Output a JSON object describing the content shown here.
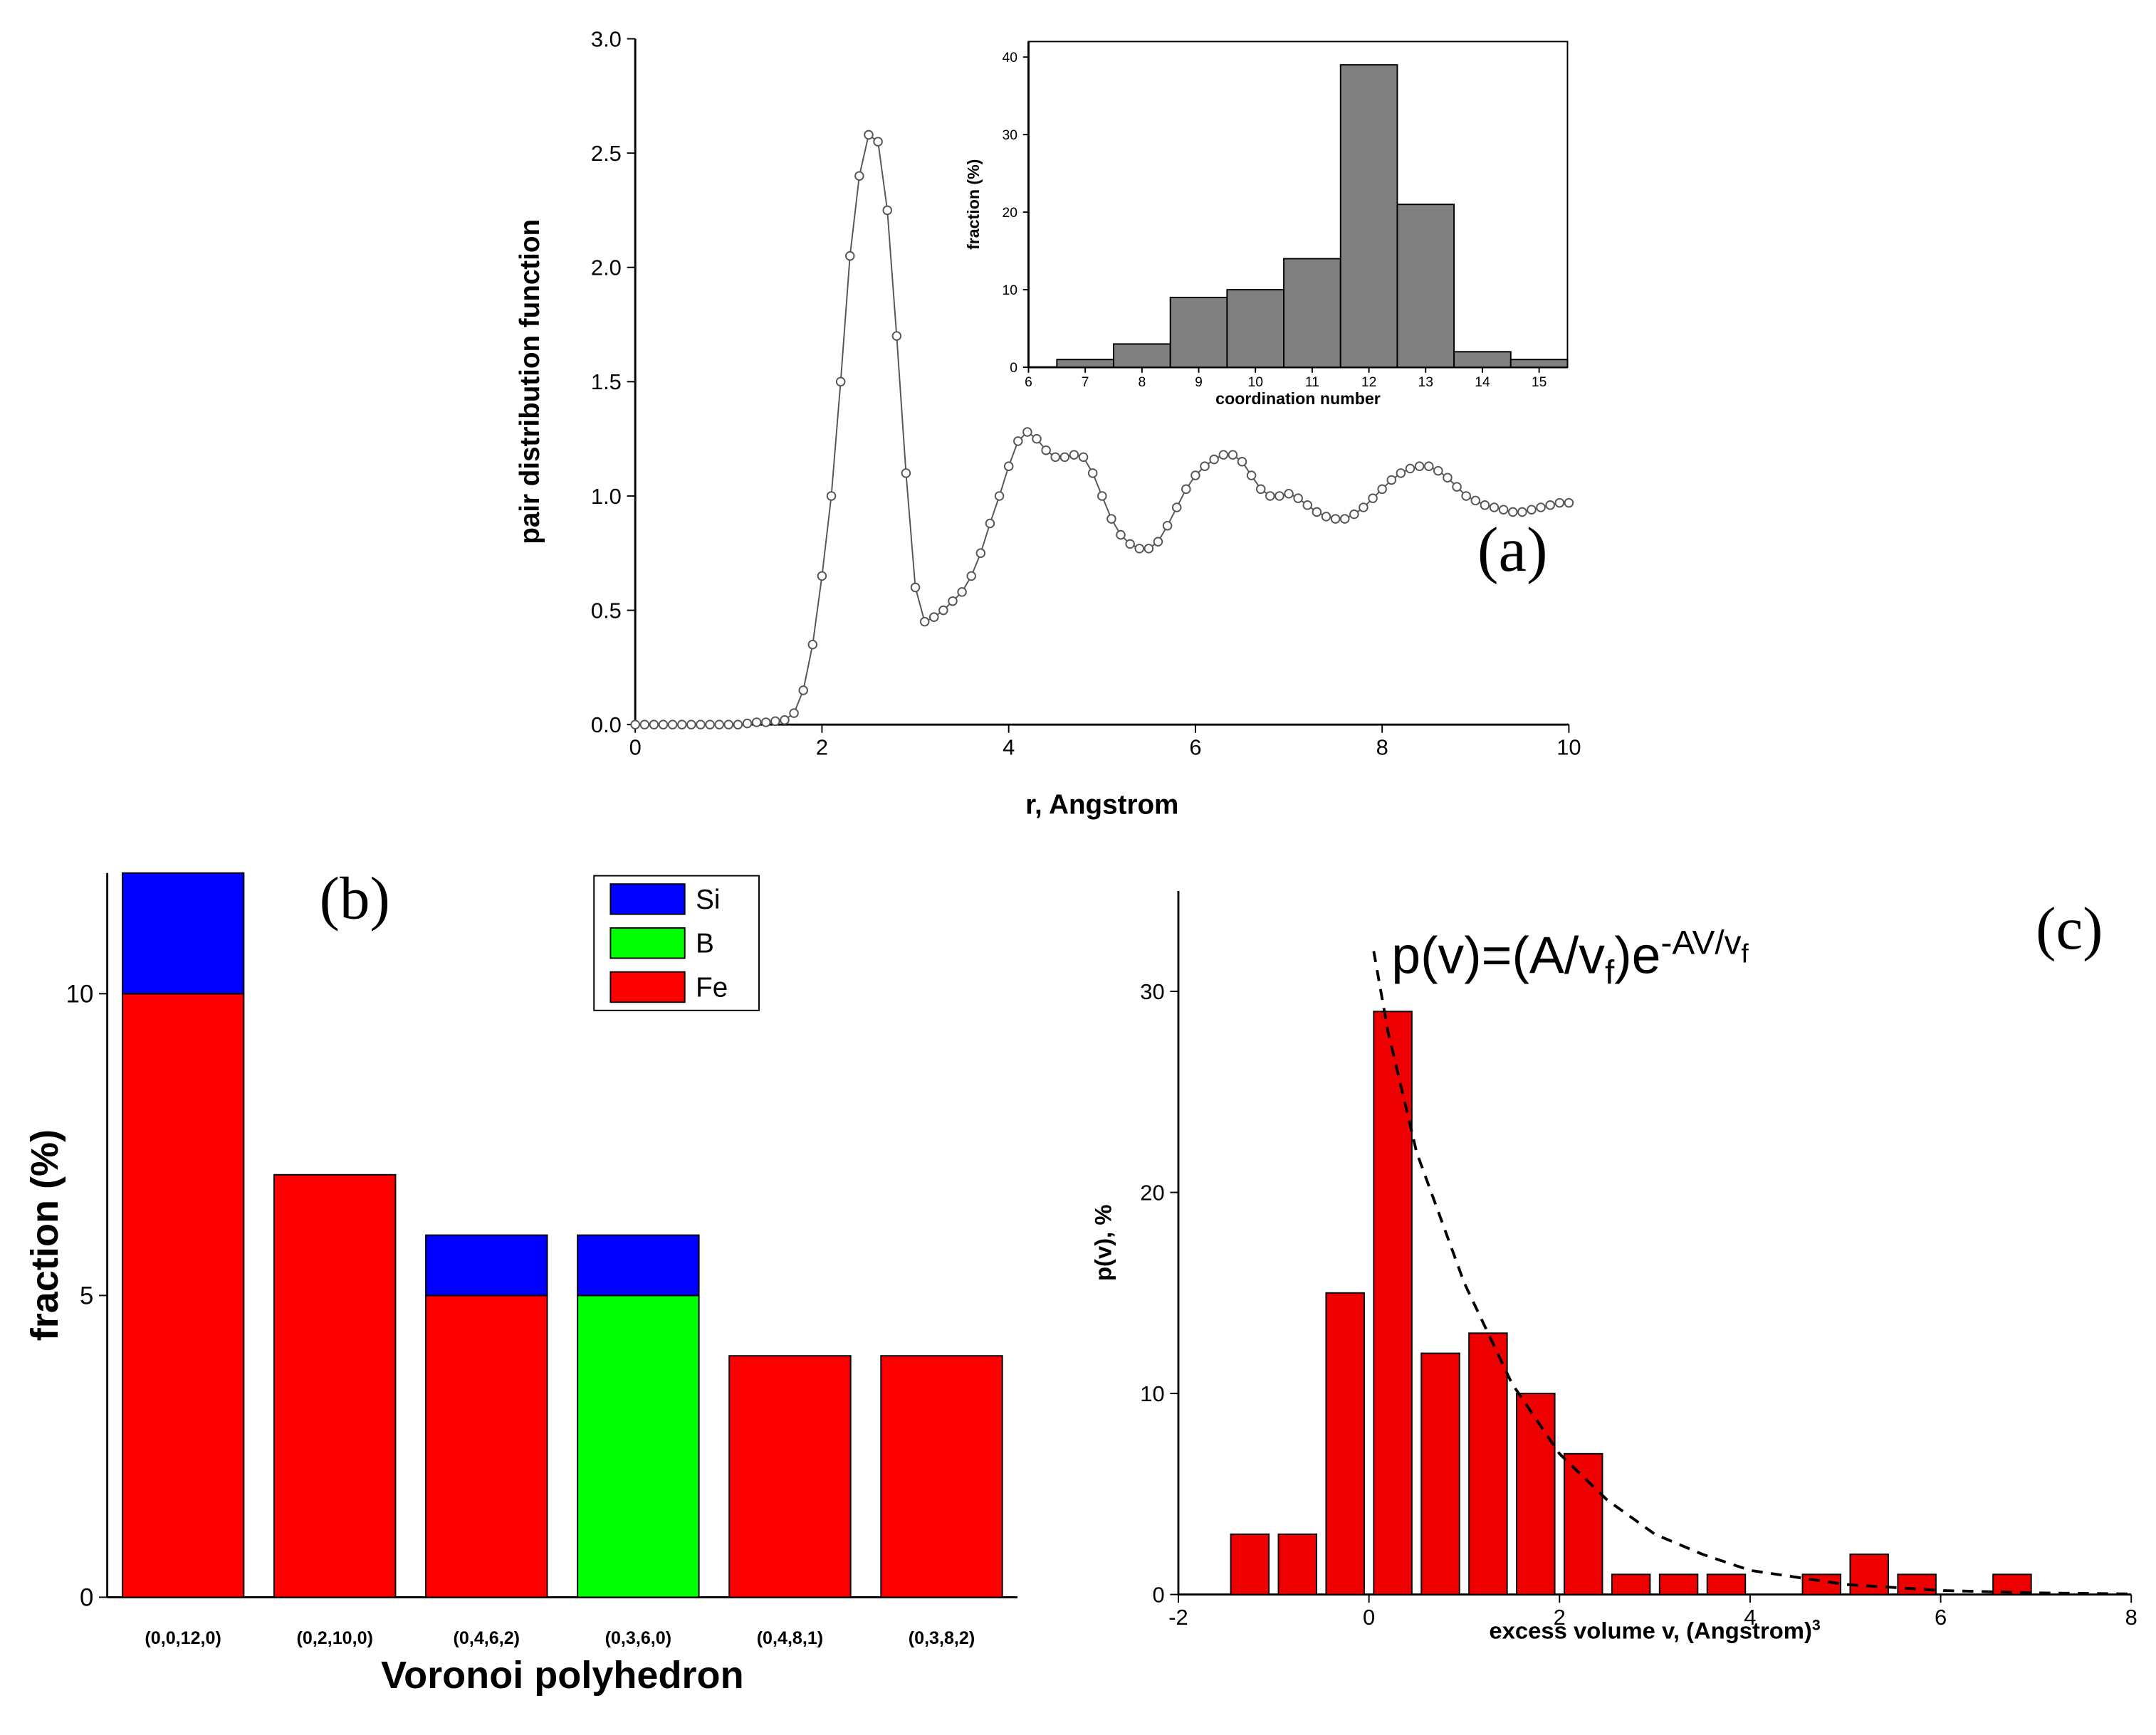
{
  "chart_data": [
    {
      "type": "line",
      "ylabel": "pair distribution function",
      "xlabel": "r, Angstrom",
      "annotation": "(a)",
      "color": "#555555",
      "xlim": [
        0,
        10
      ],
      "ylim": [
        0,
        3
      ],
      "xticks": [
        0,
        2,
        4,
        6,
        8,
        10
      ],
      "yticks": [
        {
          "value": 0,
          "label": "0.0"
        },
        {
          "value": 0.5,
          "label": "0.5"
        },
        {
          "value": 1,
          "label": "1.0"
        },
        {
          "value": 1.5,
          "label": "1.5"
        },
        {
          "value": 2,
          "label": "2.0"
        },
        {
          "value": 2.5,
          "label": "2.5"
        },
        {
          "value": 3,
          "label": "3.0"
        }
      ],
      "x": [
        0,
        0.1,
        0.2,
        0.3,
        0.4,
        0.5,
        0.6,
        0.7,
        0.8,
        0.9,
        1,
        1.1,
        1.2,
        1.3,
        1.4,
        1.5,
        1.6,
        1.7,
        1.8,
        1.9,
        2,
        2.1,
        2.2,
        2.3,
        2.4,
        2.5,
        2.6,
        2.7,
        2.8,
        2.9,
        3,
        3.1,
        3.2,
        3.3,
        3.4,
        3.5,
        3.6,
        3.7,
        3.8,
        3.9,
        4,
        4.1,
        4.2,
        4.3,
        4.4,
        4.5,
        4.6,
        4.7,
        4.8,
        4.9,
        5,
        5.1,
        5.2,
        5.3,
        5.4,
        5.5,
        5.6,
        5.7,
        5.8,
        5.9,
        6,
        6.1,
        6.2,
        6.3,
        6.4,
        6.5,
        6.6,
        6.7,
        6.8,
        6.9,
        7,
        7.1,
        7.2,
        7.3,
        7.4,
        7.5,
        7.6,
        7.7,
        7.8,
        7.9,
        8,
        8.1,
        8.2,
        8.3,
        8.4,
        8.5,
        8.6,
        8.7,
        8.8,
        8.9,
        9,
        9.1,
        9.2,
        9.3,
        9.4,
        9.5,
        9.6,
        9.7,
        9.8,
        9.9,
        10
      ],
      "values": [
        0,
        0,
        0,
        0,
        0,
        0,
        0,
        0,
        0,
        0,
        0,
        0,
        0.005,
        0.01,
        0.01,
        0.015,
        0.02,
        0.05,
        0.15,
        0.35,
        0.65,
        1.0,
        1.5,
        2.05,
        2.4,
        2.58,
        2.55,
        2.25,
        1.7,
        1.1,
        0.6,
        0.45,
        0.47,
        0.5,
        0.54,
        0.58,
        0.65,
        0.75,
        0.88,
        1.0,
        1.13,
        1.24,
        1.28,
        1.25,
        1.2,
        1.17,
        1.17,
        1.18,
        1.17,
        1.1,
        1.0,
        0.9,
        0.83,
        0.79,
        0.77,
        0.77,
        0.8,
        0.87,
        0.95,
        1.03,
        1.09,
        1.13,
        1.16,
        1.18,
        1.18,
        1.15,
        1.09,
        1.03,
        1.0,
        1.0,
        1.01,
        0.99,
        0.96,
        0.93,
        0.91,
        0.9,
        0.9,
        0.92,
        0.95,
        0.99,
        1.03,
        1.07,
        1.1,
        1.12,
        1.13,
        1.13,
        1.11,
        1.08,
        1.04,
        1.0,
        0.98,
        0.96,
        0.95,
        0.94,
        0.93,
        0.93,
        0.94,
        0.95,
        0.96,
        0.97,
        0.97
      ]
    },
    {
      "type": "histogram",
      "ylabel": "fraction (%)",
      "xlabel": "coordination number",
      "color": "#808080",
      "bins": [
        6.5,
        7.5,
        8.5,
        9.5,
        10.5,
        11.5,
        12.5,
        13.5,
        14.5,
        15.5
      ],
      "values": [
        1,
        3,
        9,
        10,
        14,
        39,
        21,
        2,
        1
      ],
      "xlim": [
        6,
        15.5
      ],
      "ylim": [
        0,
        42
      ],
      "xticks": [
        6,
        7,
        8,
        9,
        10,
        11,
        12,
        13,
        14,
        15
      ],
      "yticks": [
        0,
        10,
        20,
        30,
        40
      ]
    },
    {
      "type": "stacked_bar",
      "ylabel": "fraction (%)",
      "xlabel": "Voronoi polyhedron",
      "annotation": "(b)",
      "legend": "upper-center",
      "categories": [
        "(0,0,12,0)",
        "(0,2,10,0)",
        "(0,4,6,2)",
        "(0,3,6,0)",
        "(0,4,8,1)",
        "(0,3,8,2)"
      ],
      "series": [
        {
          "name": "Fe",
          "color": "#ff0000",
          "values": [
            10,
            7,
            5,
            0,
            4,
            4
          ]
        },
        {
          "name": "B",
          "color": "#00ff00",
          "values": [
            0,
            0,
            0,
            5,
            0,
            0
          ]
        },
        {
          "name": "Si",
          "color": "#0000ff",
          "values": [
            2,
            0,
            1,
            1,
            0,
            0
          ]
        }
      ],
      "ylim": [
        0,
        12
      ],
      "yticks": [
        0,
        5,
        10
      ]
    },
    {
      "type": "bar",
      "ylabel": "p(v),  %",
      "xlabel": "excess volume v, (Angstrom)",
      "xlabel_superscript": "3",
      "annotation": "(c)",
      "color": "#ee0000",
      "x": [
        -1.25,
        -0.75,
        -0.25,
        0.25,
        0.75,
        1.25,
        1.75,
        2.25,
        2.75,
        3.25,
        3.75,
        4.75,
        5.25,
        5.75,
        6.75
      ],
      "values": [
        3,
        3,
        15,
        29,
        12,
        13,
        10,
        7,
        1,
        1,
        1,
        1,
        2,
        1,
        1
      ],
      "bar_width": 0.4,
      "fit": {
        "style": "dashed",
        "x": [
          0.05,
          0.2,
          0.5,
          1,
          1.5,
          2,
          2.5,
          3,
          3.5,
          4,
          5,
          6,
          7,
          8
        ],
        "values": [
          32,
          28,
          22,
          15.5,
          10.5,
          7,
          4.7,
          3,
          2,
          1.2,
          0.5,
          0.2,
          0.08,
          0.03
        ]
      },
      "equation": [
        {
          "text": "p(v)=(A/v"
        },
        {
          "text": "f",
          "shift": "sub"
        },
        {
          "text": ")e"
        },
        {
          "text": "-AV/v",
          "shift": "super"
        },
        {
          "text": "f",
          "shift": "super-sub"
        }
      ],
      "xlim": [
        -2,
        8
      ],
      "ylim": [
        0,
        35
      ],
      "xticks": [
        -2,
        0,
        2,
        4,
        6,
        8
      ],
      "yticks": [
        0,
        10,
        20,
        30
      ]
    }
  ]
}
